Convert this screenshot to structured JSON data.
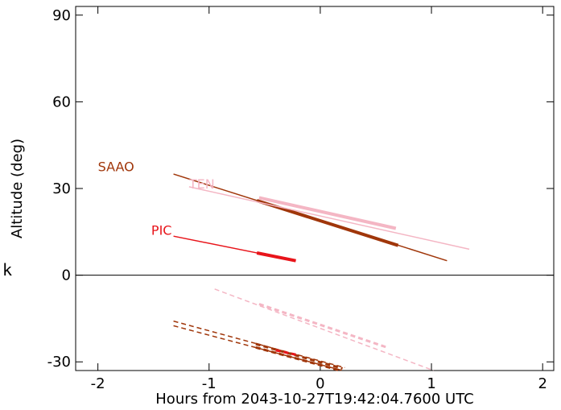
{
  "chart_data": {
    "type": "line",
    "xlabel": "Hours from 2043-10-27T19:42:04.7600 UTC",
    "ylabel": "Altitude (deg)",
    "xlim": [
      -2.2,
      2.1
    ],
    "ylim": [
      -33,
      93
    ],
    "xticks": [
      -2,
      -1,
      0,
      1,
      2
    ],
    "xtick_labels": [
      "-2",
      "-1",
      "0",
      "1",
      "2"
    ],
    "yticks": [
      -30,
      0,
      30,
      60,
      90
    ],
    "ytick_labels": [
      "-30",
      "0",
      "30",
      "60",
      "90"
    ],
    "zero_line": 0,
    "stray_label": "k",
    "grid": false,
    "series": [
      {
        "name": "SAAO",
        "color": "#A0360A",
        "label_at": [
          -2.0,
          36
        ],
        "line": [
          [
            -1.32,
            35
          ],
          [
            1.14,
            5
          ]
        ],
        "bold": [
          [
            -0.57,
            25.8
          ],
          [
            0.7,
            10.3
          ]
        ],
        "dashed": [
          [
            [
              -1.32,
              -15.9
            ],
            [
              0.22,
              -32
            ]
          ],
          [
            [
              -1.32,
              -17.5
            ],
            [
              0.2,
              -33
            ]
          ]
        ],
        "dashed_bold": [
          [
            [
              -0.58,
              -23.8
            ],
            [
              0.2,
              -32.3
            ]
          ],
          [
            [
              -0.58,
              -25
            ],
            [
              0.18,
              -33
            ]
          ]
        ]
      },
      {
        "name": "TEN",
        "color": "#F4B6C4",
        "label_at": [
          -1.18,
          30
        ],
        "line": [
          [
            -1.18,
            30.6
          ],
          [
            1.34,
            9
          ]
        ],
        "bold": [
          [
            -0.55,
            26.8
          ],
          [
            0.68,
            16.2
          ]
        ],
        "dashed": [
          [
            [
              -0.95,
              -4.8
            ],
            [
              1.02,
              -33
            ]
          ]
        ],
        "dashed_bold": [
          [
            [
              -0.55,
              -10
            ],
            [
              0.6,
              -25
            ]
          ]
        ]
      },
      {
        "name": "PIC",
        "color": "#E8141A",
        "label_at": [
          -1.52,
          14
        ],
        "line": [
          [
            -1.32,
            13.5
          ],
          [
            -0.22,
            5
          ]
        ],
        "bold": [
          [
            -0.57,
            7.7
          ],
          [
            -0.22,
            5
          ]
        ],
        "dashed": [],
        "dashed_bold": [
          [
            [
              -0.4,
              -26
            ],
            [
              -0.22,
              -27.5
            ]
          ]
        ]
      }
    ]
  }
}
